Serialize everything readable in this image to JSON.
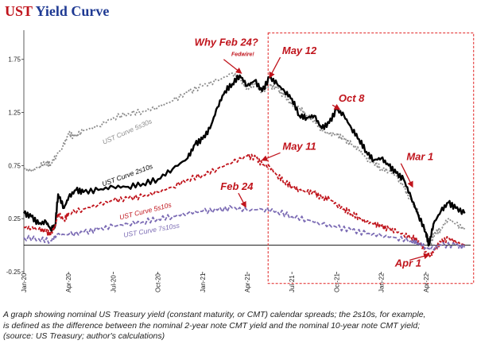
{
  "chart_data": {
    "type": "line",
    "title_prefix": "UST",
    "title_rest": " Yield Curve",
    "title_colors": {
      "prefix": "#c0141c",
      "rest": "#1f3a93"
    },
    "xlabel": "",
    "ylabel": "",
    "ylim": [
      -0.25,
      1.95
    ],
    "xlim": [
      0,
      30
    ],
    "grid": false,
    "y_ticks": [
      {
        "value": 1.75,
        "label": "1.75"
      },
      {
        "value": 1.25,
        "label": "1.25"
      },
      {
        "value": 0.75,
        "label": "0.75"
      },
      {
        "value": 0.25,
        "label": "0.25"
      },
      {
        "value": -0.25,
        "label": "-0.25"
      }
    ],
    "x_ticks": [
      {
        "value": 0,
        "label": "Jan-20"
      },
      {
        "value": 3,
        "label": "Apr-20"
      },
      {
        "value": 6,
        "label": "Jul-20"
      },
      {
        "value": 9,
        "label": "Oct-20"
      },
      {
        "value": 12,
        "label": "Jan-21"
      },
      {
        "value": 15,
        "label": "Apr-21"
      },
      {
        "value": 18,
        "label": "Jul-21"
      },
      {
        "value": 21,
        "label": "Oct-21"
      },
      {
        "value": 24,
        "label": "Jan-22"
      },
      {
        "value": 27,
        "label": "Apr-22"
      }
    ],
    "zero_line": 0,
    "x_month_index_note": "x = months since Jan-2020",
    "series": [
      {
        "name": "UST Curve 5s30s",
        "color": "#8c8c8c",
        "dash": "2,2",
        "width": 1.8,
        "points": [
          [
            0,
            0.72
          ],
          [
            0.5,
            0.7
          ],
          [
            1,
            0.74
          ],
          [
            1.5,
            0.78
          ],
          [
            1.8,
            0.76
          ],
          [
            2.2,
            0.85
          ],
          [
            2.6,
            0.92
          ],
          [
            3,
            1.05
          ],
          [
            3.4,
            1.02
          ],
          [
            4,
            1.08
          ],
          [
            5,
            1.12
          ],
          [
            6,
            1.2
          ],
          [
            7,
            1.24
          ],
          [
            8,
            1.26
          ],
          [
            9,
            1.3
          ],
          [
            10,
            1.36
          ],
          [
            11,
            1.44
          ],
          [
            12,
            1.5
          ],
          [
            13,
            1.55
          ],
          [
            14,
            1.62
          ],
          [
            14.6,
            1.55
          ],
          [
            15,
            1.48
          ],
          [
            15.5,
            1.52
          ],
          [
            16,
            1.44
          ],
          [
            16.5,
            1.5
          ],
          [
            17,
            1.48
          ],
          [
            17.5,
            1.4
          ],
          [
            18,
            1.32
          ],
          [
            18.5,
            1.3
          ],
          [
            19,
            1.22
          ],
          [
            19.5,
            1.18
          ],
          [
            20,
            1.08
          ],
          [
            20.5,
            1.05
          ],
          [
            21,
            1.04
          ],
          [
            21.5,
            1.0
          ],
          [
            22,
            0.95
          ],
          [
            22.5,
            0.9
          ],
          [
            23,
            0.82
          ],
          [
            23.5,
            0.78
          ],
          [
            24,
            0.72
          ],
          [
            24.5,
            0.7
          ],
          [
            25,
            0.65
          ],
          [
            25.5,
            0.55
          ],
          [
            26,
            0.42
          ],
          [
            26.5,
            0.3
          ],
          [
            27,
            0.12
          ],
          [
            27.3,
            0.02
          ],
          [
            27.6,
            0.12
          ],
          [
            28,
            0.15
          ],
          [
            28.5,
            0.25
          ],
          [
            29,
            0.2
          ],
          [
            29.6,
            0.15
          ]
        ]
      },
      {
        "name": "UST Curve 2s10s",
        "color": "#000000",
        "dash": "",
        "width": 2.4,
        "points": [
          [
            0,
            0.3
          ],
          [
            0.5,
            0.27
          ],
          [
            1,
            0.2
          ],
          [
            1.5,
            0.22
          ],
          [
            1.8,
            0.15
          ],
          [
            2.1,
            0.18
          ],
          [
            2.3,
            0.48
          ],
          [
            2.7,
            0.35
          ],
          [
            3,
            0.45
          ],
          [
            3.5,
            0.52
          ],
          [
            4,
            0.5
          ],
          [
            5,
            0.52
          ],
          [
            6,
            0.55
          ],
          [
            7,
            0.55
          ],
          [
            8,
            0.58
          ],
          [
            9,
            0.62
          ],
          [
            10,
            0.72
          ],
          [
            11,
            0.82
          ],
          [
            11.5,
            0.95
          ],
          [
            12,
            1.0
          ],
          [
            12.5,
            1.1
          ],
          [
            13,
            1.3
          ],
          [
            13.5,
            1.45
          ],
          [
            14,
            1.52
          ],
          [
            14.5,
            1.6
          ],
          [
            15,
            1.5
          ],
          [
            15.5,
            1.55
          ],
          [
            16,
            1.45
          ],
          [
            16.5,
            1.58
          ],
          [
            17,
            1.52
          ],
          [
            17.5,
            1.45
          ],
          [
            18,
            1.38
          ],
          [
            18.5,
            1.22
          ],
          [
            19,
            1.2
          ],
          [
            19.5,
            1.22
          ],
          [
            20,
            1.1
          ],
          [
            20.5,
            1.15
          ],
          [
            21,
            1.28
          ],
          [
            21.5,
            1.22
          ],
          [
            22,
            1.1
          ],
          [
            22.5,
            1.0
          ],
          [
            23,
            0.88
          ],
          [
            23.5,
            0.8
          ],
          [
            24,
            0.82
          ],
          [
            24.5,
            0.75
          ],
          [
            25,
            0.68
          ],
          [
            25.5,
            0.62
          ],
          [
            26,
            0.45
          ],
          [
            26.5,
            0.28
          ],
          [
            27,
            0.12
          ],
          [
            27.2,
            0.0
          ],
          [
            27.5,
            0.2
          ],
          [
            28,
            0.32
          ],
          [
            28.5,
            0.4
          ],
          [
            29,
            0.35
          ],
          [
            29.6,
            0.3
          ]
        ]
      },
      {
        "name": "UST Curve 5s10s",
        "color": "#c0141c",
        "dash": "4,2",
        "width": 1.8,
        "points": [
          [
            0,
            0.17
          ],
          [
            0.5,
            0.16
          ],
          [
            1,
            0.15
          ],
          [
            1.5,
            0.13
          ],
          [
            1.8,
            0.1
          ],
          [
            2.1,
            0.18
          ],
          [
            2.3,
            0.3
          ],
          [
            2.7,
            0.24
          ],
          [
            3,
            0.3
          ],
          [
            4,
            0.34
          ],
          [
            5,
            0.38
          ],
          [
            6,
            0.42
          ],
          [
            7,
            0.44
          ],
          [
            8,
            0.46
          ],
          [
            9,
            0.5
          ],
          [
            10,
            0.55
          ],
          [
            11,
            0.62
          ],
          [
            12,
            0.66
          ],
          [
            13,
            0.72
          ],
          [
            14,
            0.78
          ],
          [
            15,
            0.84
          ],
          [
            15.6,
            0.82
          ],
          [
            16,
            0.76
          ],
          [
            16.5,
            0.74
          ],
          [
            17,
            0.66
          ],
          [
            17.5,
            0.6
          ],
          [
            18,
            0.55
          ],
          [
            18.5,
            0.52
          ],
          [
            19,
            0.5
          ],
          [
            19.5,
            0.5
          ],
          [
            20,
            0.44
          ],
          [
            20.5,
            0.44
          ],
          [
            21,
            0.38
          ],
          [
            21.5,
            0.34
          ],
          [
            22,
            0.3
          ],
          [
            22.5,
            0.26
          ],
          [
            23,
            0.22
          ],
          [
            23.5,
            0.2
          ],
          [
            24,
            0.18
          ],
          [
            24.5,
            0.15
          ],
          [
            25,
            0.13
          ],
          [
            25.5,
            0.1
          ],
          [
            26,
            0.08
          ],
          [
            26.5,
            0.04
          ],
          [
            27,
            -0.06
          ],
          [
            27.3,
            -0.1
          ],
          [
            27.6,
            -0.04
          ],
          [
            28,
            0.03
          ],
          [
            28.5,
            0.06
          ],
          [
            29,
            0.03
          ],
          [
            29.6,
            0.0
          ]
        ]
      },
      {
        "name": "UST Curve 7s10ss",
        "color": "#7b6bb4",
        "dash": "5,2",
        "width": 1.8,
        "points": [
          [
            0,
            0.07
          ],
          [
            1,
            0.06
          ],
          [
            1.8,
            0.04
          ],
          [
            2.2,
            0.1
          ],
          [
            3,
            0.1
          ],
          [
            4,
            0.12
          ],
          [
            5,
            0.15
          ],
          [
            6,
            0.18
          ],
          [
            7,
            0.2
          ],
          [
            8,
            0.22
          ],
          [
            9,
            0.25
          ],
          [
            10,
            0.27
          ],
          [
            11,
            0.3
          ],
          [
            12,
            0.32
          ],
          [
            13,
            0.33
          ],
          [
            14,
            0.35
          ],
          [
            15,
            0.33
          ],
          [
            16,
            0.34
          ],
          [
            17,
            0.32
          ],
          [
            18,
            0.27
          ],
          [
            19,
            0.24
          ],
          [
            20,
            0.2
          ],
          [
            21,
            0.17
          ],
          [
            22,
            0.14
          ],
          [
            23,
            0.11
          ],
          [
            24,
            0.09
          ],
          [
            25,
            0.07
          ],
          [
            26,
            0.04
          ],
          [
            26.5,
            0.02
          ],
          [
            27,
            -0.02
          ],
          [
            27.3,
            -0.04
          ],
          [
            28,
            0.0
          ],
          [
            29,
            0.0
          ],
          [
            29.6,
            -0.02
          ]
        ]
      }
    ],
    "series_labels": [
      {
        "text": "UST Curve 5s30s",
        "color": "#8c8c8c",
        "x": 7.0,
        "y": 1.05,
        "rotate": -24
      },
      {
        "text": "UST Curve 2s10s",
        "color": "#000000",
        "x": 7.0,
        "y": 0.64,
        "rotate": -20
      },
      {
        "text": "UST Curve 5s10s",
        "color": "#c0141c",
        "x": 8.2,
        "y": 0.3,
        "rotate": -14
      },
      {
        "text": "UST Curve 7s10ss",
        "color": "#7b6bb4",
        "x": 8.6,
        "y": 0.12,
        "rotate": -10
      }
    ],
    "annotations": [
      {
        "text": "Why Feb 24?",
        "x": 13.6,
        "y": 1.88,
        "size": "large",
        "arrow_to": null
      },
      {
        "text": "Fedwire!",
        "x": 14.7,
        "y": 1.78,
        "size": "small",
        "arrow_to": [
          14.6,
          1.62
        ]
      },
      {
        "text": "May 12",
        "x": 18.5,
        "y": 1.8,
        "size": "large",
        "arrow_to": [
          16.5,
          1.58
        ]
      },
      {
        "text": "Oct 8",
        "x": 22.0,
        "y": 1.35,
        "size": "large",
        "arrow_to": [
          21.2,
          1.28
        ]
      },
      {
        "text": "May 11",
        "x": 18.5,
        "y": 0.9,
        "size": "large",
        "arrow_to": [
          16.0,
          0.8
        ]
      },
      {
        "text": "Mar 1",
        "x": 26.6,
        "y": 0.8,
        "size": "large",
        "arrow_to": [
          26.1,
          0.55
        ]
      },
      {
        "text": "Feb 24",
        "x": 14.3,
        "y": 0.52,
        "size": "large",
        "arrow_to": [
          14.9,
          0.36
        ]
      },
      {
        "text": "Apr 1",
        "x": 25.8,
        "y": -0.2,
        "size": "large",
        "arrow_to": [
          27.2,
          -0.09
        ]
      }
    ],
    "highlight_box": {
      "x0": 16.4,
      "x1": 30.2,
      "y0": -0.36,
      "y1": 2.0,
      "color": "#e02020"
    }
  },
  "caption": {
    "line1": "A graph showing nominal US Treasury yield (constant maturity, or CMT) calendar spreads; the 2s10s, for example,",
    "line2": "is defined as the difference between the nominal 2-year note CMT yield and the nominal 10-year note CMT yield;",
    "line3": "(source: US Treasury; author's calculations)"
  }
}
